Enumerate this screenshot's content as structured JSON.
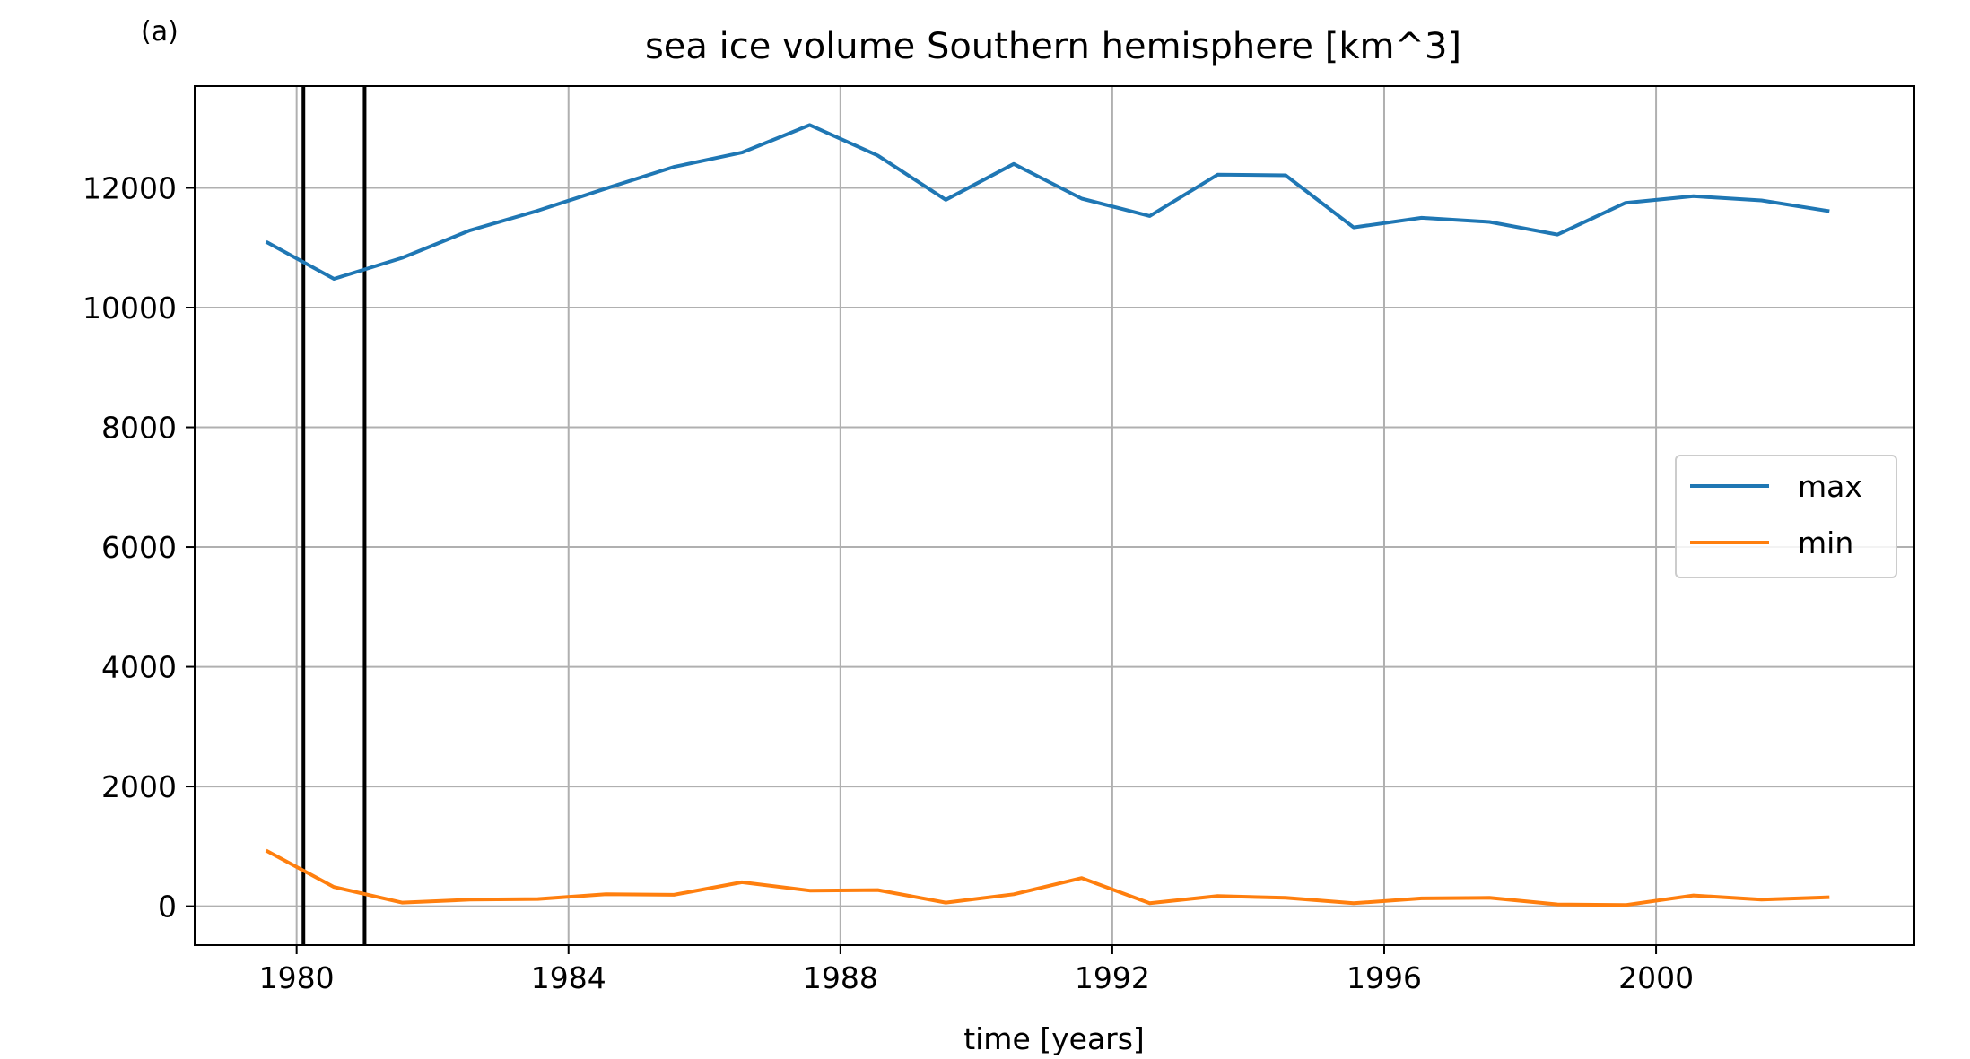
{
  "panel_label": "(a)",
  "chart_data": {
    "type": "line",
    "title": "sea ice volume Southern hemisphere [km^3]",
    "xlabel": "time [years]",
    "ylabel": "",
    "xlim": [
      1978.5,
      2003.8
    ],
    "ylim": [
      -650,
      13700
    ],
    "x_ticks": [
      1980,
      1984,
      1988,
      1992,
      1996,
      2000
    ],
    "x_tick_labels": [
      "1980",
      "1984",
      "1988",
      "1992",
      "1996",
      "2000"
    ],
    "y_ticks": [
      0,
      2000,
      4000,
      6000,
      8000,
      10000,
      12000
    ],
    "y_tick_labels": [
      "0",
      "2000",
      "4000",
      "6000",
      "8000",
      "10000",
      "12000"
    ],
    "grid": true,
    "legend_position": "center-right",
    "vertical_lines": [
      1980.1,
      1981.0
    ],
    "x": [
      1979.55,
      1980.55,
      1981.55,
      1982.55,
      1983.55,
      1984.55,
      1985.55,
      1986.55,
      1987.55,
      1988.55,
      1989.55,
      1990.55,
      1991.55,
      1992.55,
      1993.55,
      1994.55,
      1995.55,
      1996.55,
      1997.55,
      1998.55,
      1999.55,
      2000.55,
      2001.55,
      2002.55
    ],
    "series": [
      {
        "name": "max",
        "color": "#1f77b4",
        "values": [
          11100,
          10480,
          10830,
          11290,
          11620,
          11990,
          12350,
          12590,
          13050,
          12540,
          11800,
          12400,
          11820,
          11530,
          12220,
          12210,
          11340,
          11500,
          11430,
          11220,
          11750,
          11860,
          11790,
          11610
        ]
      },
      {
        "name": "min",
        "color": "#ff7f0e",
        "values": [
          930,
          320,
          60,
          110,
          120,
          200,
          190,
          400,
          260,
          270,
          60,
          200,
          470,
          50,
          170,
          140,
          50,
          130,
          140,
          30,
          20,
          180,
          110,
          150
        ]
      }
    ]
  }
}
